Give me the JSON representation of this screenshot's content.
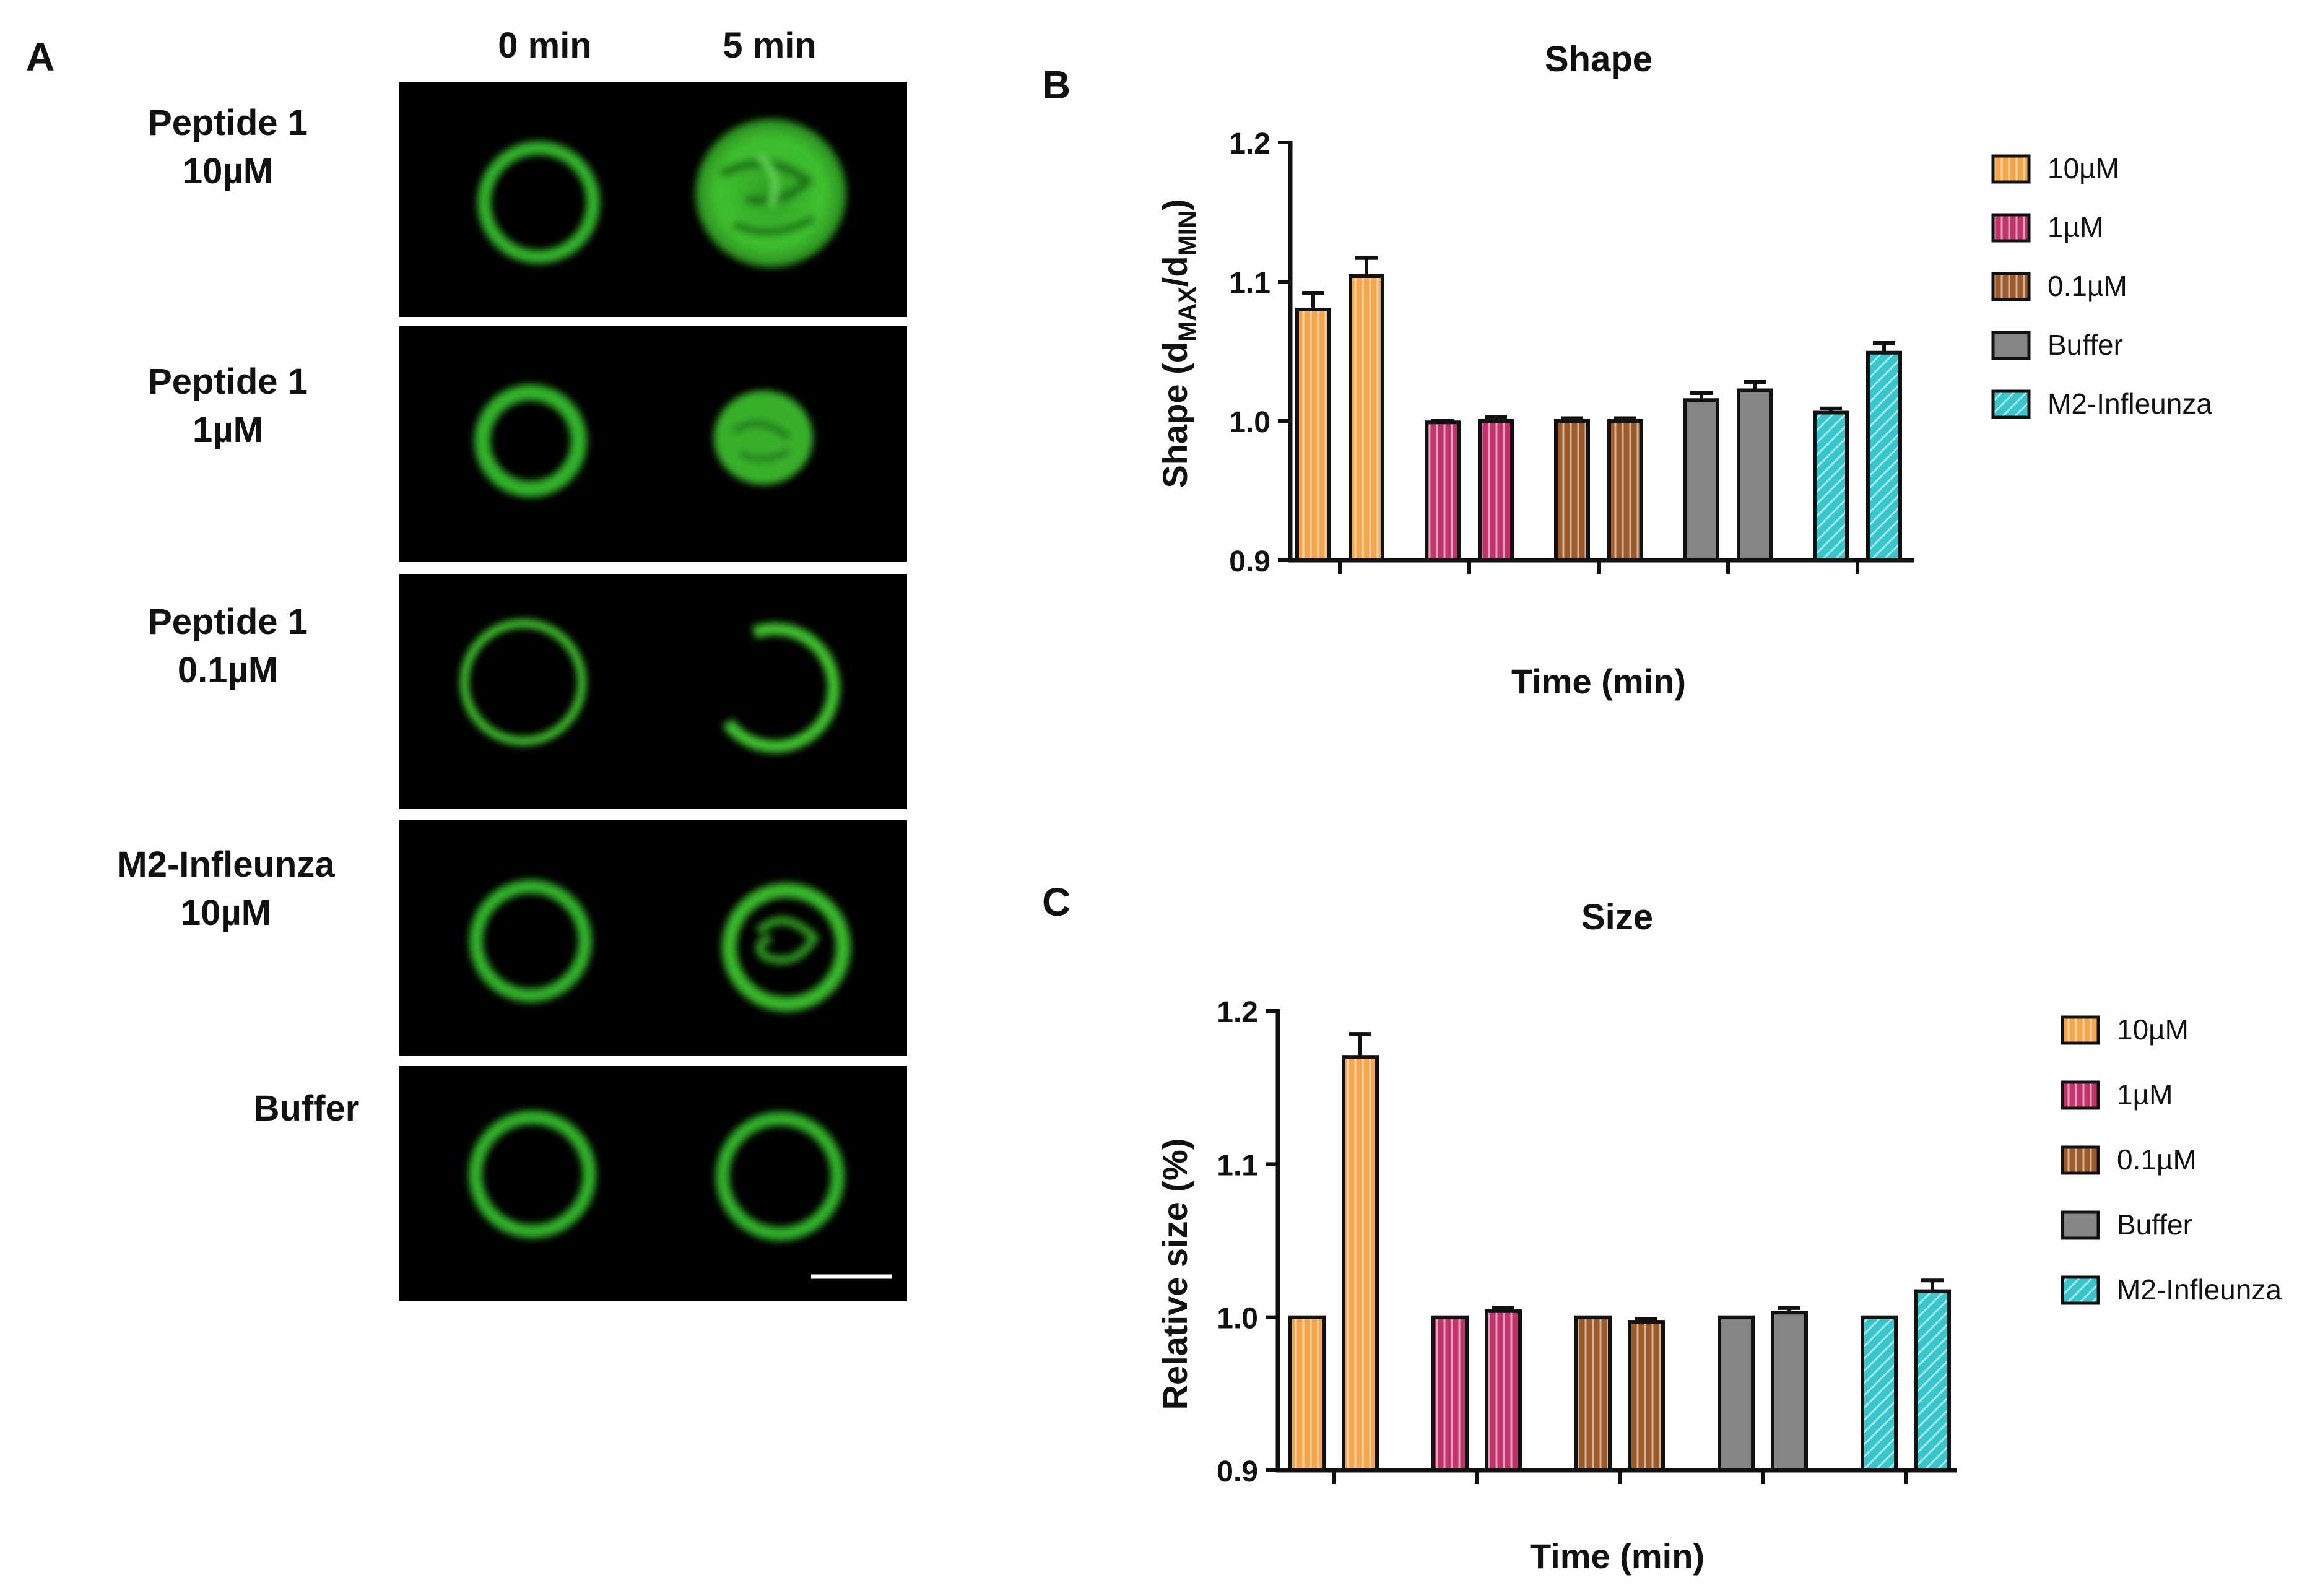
{
  "panel_a": {
    "letter": "A",
    "col_headers": [
      "0 min",
      "5 min"
    ],
    "rows": [
      {
        "line1": "Peptide 1",
        "line2": "10µM",
        "state5": "disrupted"
      },
      {
        "line1": "Peptide 1",
        "line2": "1µM",
        "state5": "shrunken"
      },
      {
        "line1": "Peptide 1",
        "line2": "0.1µM",
        "state5": "partial-ring"
      },
      {
        "line1": "M2-Infleunza",
        "line2": "10µM",
        "state5": "internal-folds"
      },
      {
        "line1": "Buffer",
        "line2": "",
        "state5": "intact"
      }
    ],
    "colors": {
      "fluor": "#3fbf2f",
      "frame": "#000000"
    }
  },
  "chart_data": [
    {
      "panel_letter": "B",
      "type": "bar",
      "title": "Shape",
      "xlabel": "Time (min)",
      "ylabel_parts": {
        "main": "Shape (d",
        "sub1": "MAX",
        "mid": "/d",
        "sub2": "MIN",
        "end": ")"
      },
      "ylim": [
        0.9,
        1.2
      ],
      "yticks": [
        "0.9",
        "1.0",
        "1.1",
        "1.2"
      ],
      "groups": [
        {
          "name": "10µM",
          "color": "#f7a54a",
          "hatch": "vertical",
          "values": [
            1.08,
            1.104
          ],
          "errors": [
            0.012,
            0.013
          ]
        },
        {
          "name": "1µM",
          "color": "#c0346b",
          "hatch": "vertical",
          "values": [
            0.999,
            1.0
          ],
          "errors": [
            0.001,
            0.003
          ]
        },
        {
          "name": "0.1µM",
          "color": "#9c5a2b",
          "hatch": "vertical",
          "values": [
            1.0,
            1.0
          ],
          "errors": [
            0.002,
            0.002
          ]
        },
        {
          "name": "Buffer",
          "color": "#858585",
          "hatch": "none",
          "values": [
            1.015,
            1.022
          ],
          "errors": [
            0.005,
            0.006
          ]
        },
        {
          "name": "M2-Infleunza",
          "color": "#38c6cd",
          "hatch": "diagonal",
          "values": [
            1.006,
            1.049
          ],
          "errors": [
            0.003,
            0.007
          ]
        }
      ],
      "legend": [
        "10µM",
        " 1µM",
        "0.1µM",
        "Buffer",
        "M2-Infleunza"
      ],
      "legend_position": "right"
    },
    {
      "panel_letter": "C",
      "type": "bar",
      "title": "Size",
      "xlabel": "Time (min)",
      "ylabel": "Relative size (%)",
      "ylim": [
        0.9,
        1.2
      ],
      "yticks": [
        "0.9",
        "1.0",
        "1.1",
        "1.2"
      ],
      "groups": [
        {
          "name": "10µM",
          "color": "#f7a54a",
          "hatch": "vertical",
          "values": [
            1.0,
            1.17
          ],
          "errors": [
            0,
            0.015
          ]
        },
        {
          "name": "1µM",
          "color": "#c0346b",
          "hatch": "vertical",
          "values": [
            1.0,
            1.004
          ],
          "errors": [
            0,
            0.002
          ]
        },
        {
          "name": "0.1µM",
          "color": "#9c5a2b",
          "hatch": "vertical",
          "values": [
            1.0,
            0.997
          ],
          "errors": [
            0,
            0.002
          ]
        },
        {
          "name": "Buffer",
          "color": "#858585",
          "hatch": "none",
          "values": [
            1.0,
            1.003
          ],
          "errors": [
            0,
            0.003
          ]
        },
        {
          "name": "M2-Infleunza",
          "color": "#38c6cd",
          "hatch": "diagonal",
          "values": [
            1.0,
            1.017
          ],
          "errors": [
            0,
            0.007
          ]
        }
      ],
      "legend": [
        "10µM",
        " 1µM",
        " 0.1µM",
        " Buffer",
        "M2-Infleunza"
      ],
      "legend_position": "right"
    }
  ]
}
